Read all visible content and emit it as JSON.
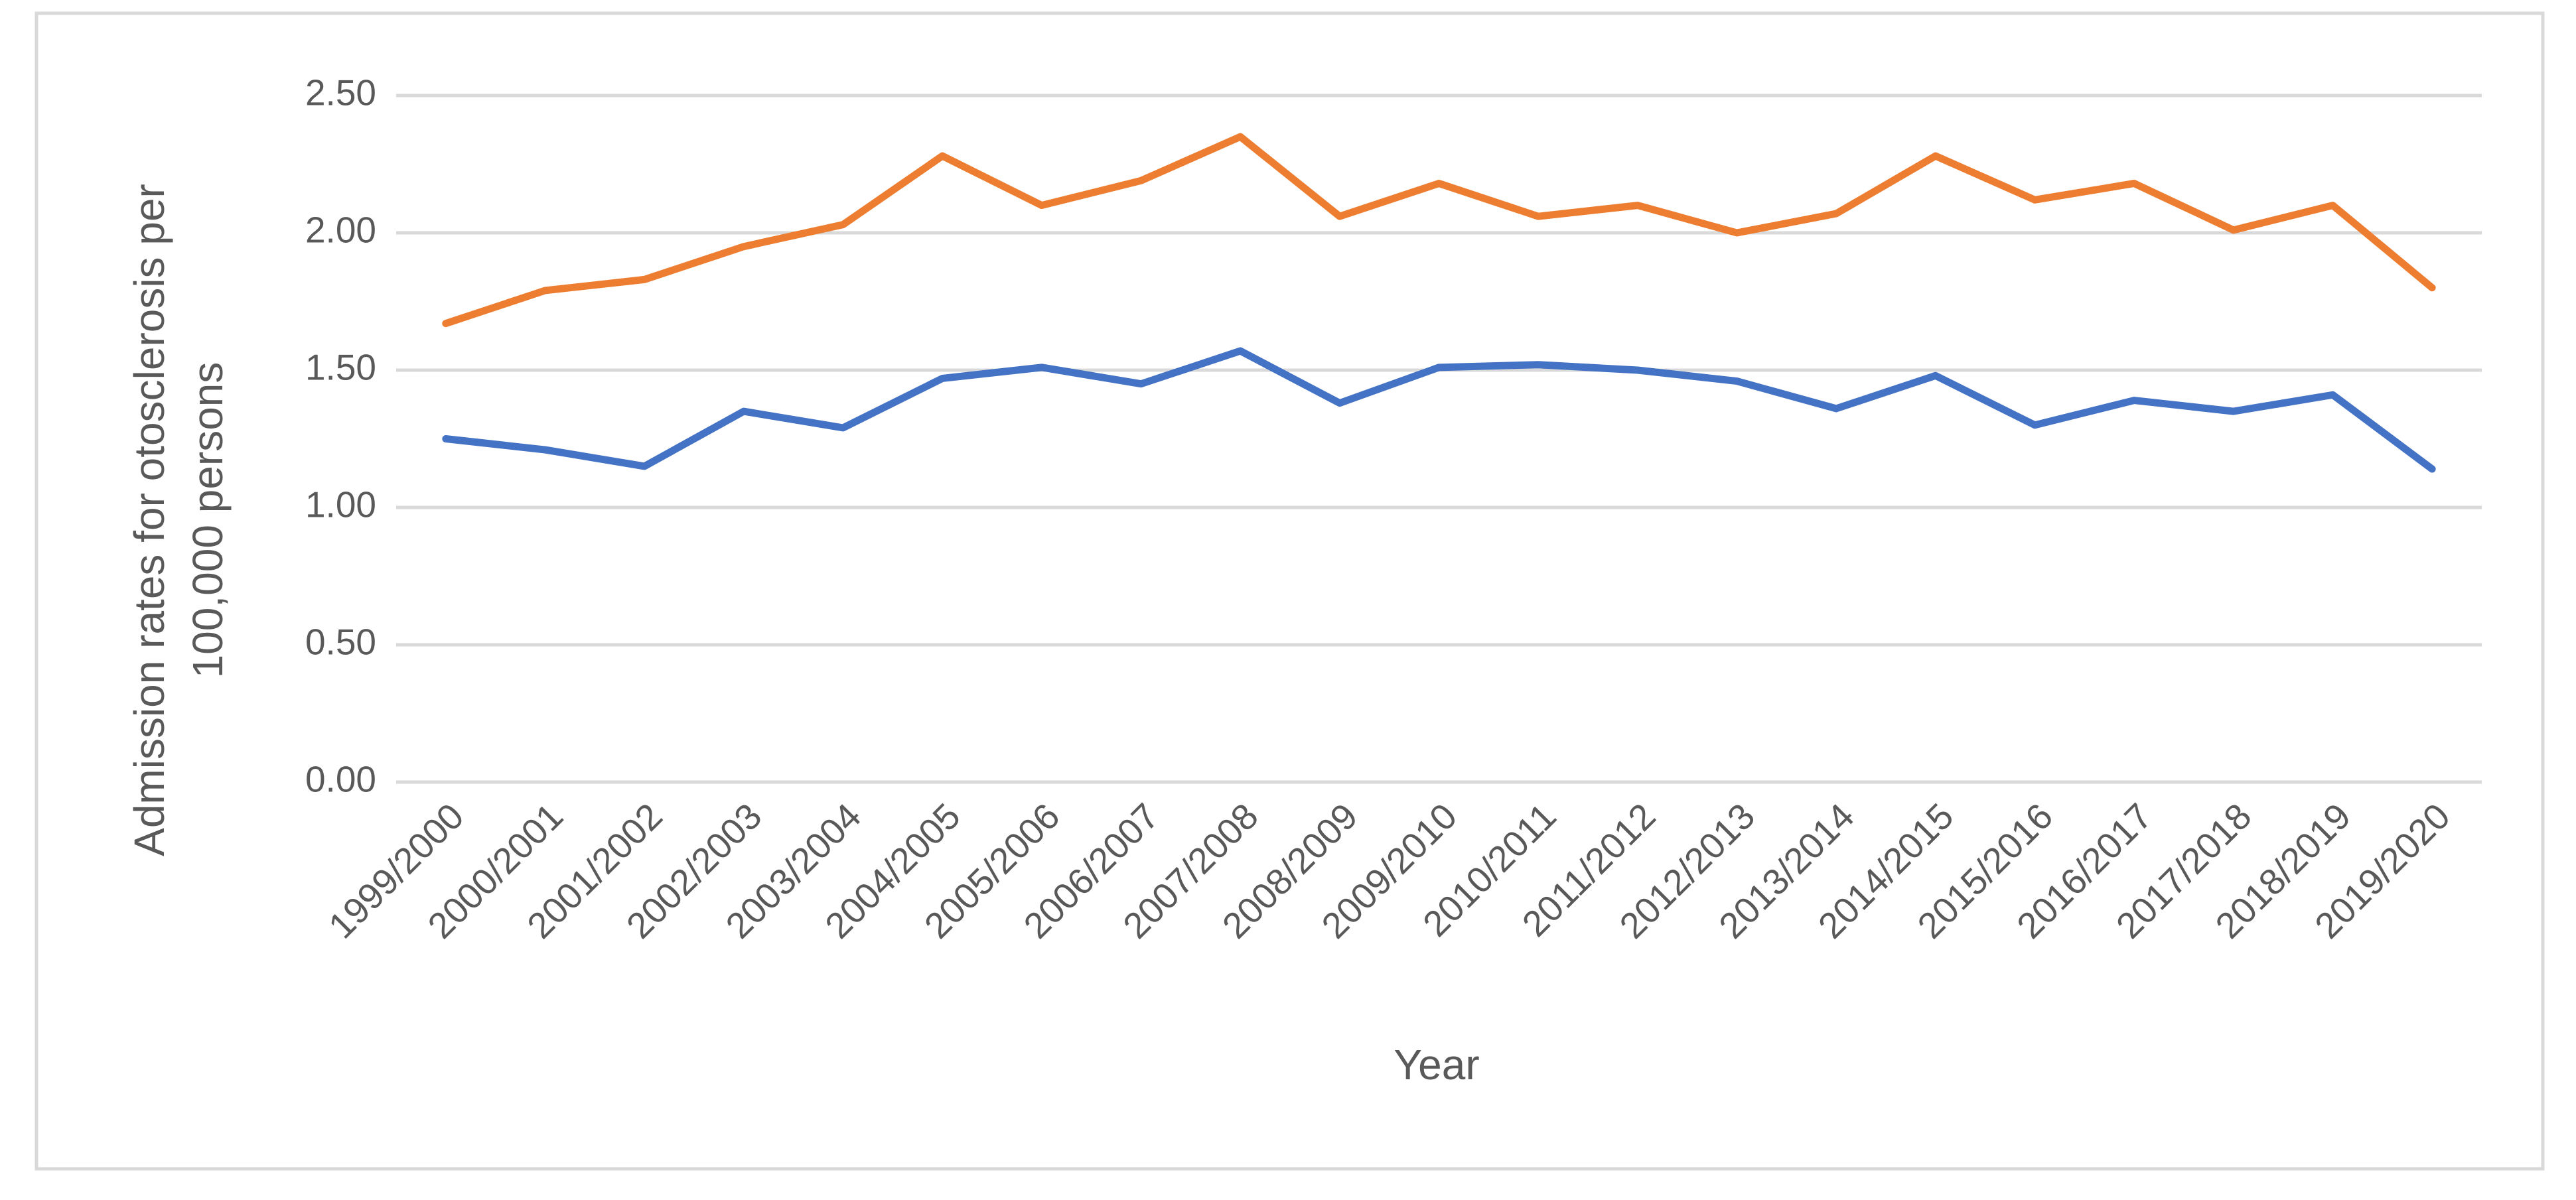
{
  "chart_data": {
    "type": "line",
    "xlabel": "Year",
    "ylabel": [
      "Admission rates  for otosclerosis per",
      "100,000 persons"
    ],
    "categories": [
      "1999/2000",
      "2000/2001",
      "2001/2002",
      "2002/2003",
      "2003/2004",
      "2004/2005",
      "2005/2006",
      "2006/2007",
      "2007/2008",
      "2008/2009",
      "2009/2010",
      "2010/2011",
      "2011/2012",
      "2012/2013",
      "2013/2014",
      "2014/2015",
      "2015/2016",
      "2016/2017",
      "2017/2018",
      "2018/2019",
      "2019/2020"
    ],
    "series": [
      {
        "color": "#4472c4",
        "values": [
          1.25,
          1.21,
          1.15,
          1.35,
          1.29,
          1.47,
          1.51,
          1.45,
          1.57,
          1.38,
          1.51,
          1.52,
          1.5,
          1.46,
          1.36,
          1.48,
          1.3,
          1.39,
          1.35,
          1.41,
          1.14
        ]
      },
      {
        "color": "#ed7d31",
        "values": [
          1.67,
          1.79,
          1.83,
          1.95,
          2.03,
          2.28,
          2.1,
          2.19,
          2.35,
          2.06,
          2.18,
          2.06,
          2.1,
          2.0,
          2.07,
          2.28,
          2.12,
          2.18,
          2.01,
          2.1,
          1.8
        ]
      }
    ],
    "ylim": [
      0,
      2.5
    ],
    "yticks": [
      {
        "value": 0,
        "label": "0.00"
      },
      {
        "value": 0.5,
        "label": "0.50"
      },
      {
        "value": 1,
        "label": "1.00"
      },
      {
        "value": 1.5,
        "label": "1.50"
      },
      {
        "value": 2,
        "label": "2.00"
      },
      {
        "value": 2.5,
        "label": "2.50"
      }
    ],
    "grid": true
  }
}
